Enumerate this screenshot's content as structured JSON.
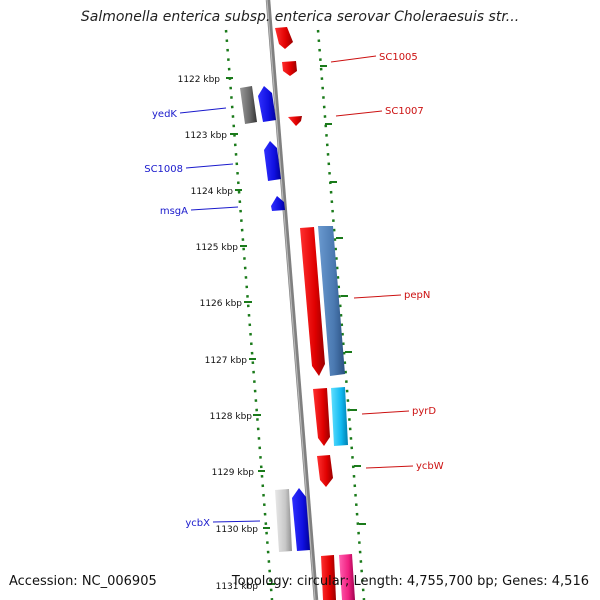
{
  "title": "Salmonella enterica subsp. enterica serovar Choleraesuis str...",
  "accession_text": "Accession: NC_006905",
  "summary_text": "Topology: circular; Length: 4,755,700 bp; Genes: 4,516",
  "ticks": [
    {
      "label": "1122 kbp"
    },
    {
      "label": "1123 kbp"
    },
    {
      "label": "1124 kbp"
    },
    {
      "label": "1125 kbp"
    },
    {
      "label": "1126 kbp"
    },
    {
      "label": "1127 kbp"
    },
    {
      "label": "1128 kbp"
    },
    {
      "label": "1129 kbp"
    },
    {
      "label": "1130 kbp"
    },
    {
      "label": "1131 kbp"
    }
  ],
  "gene_labels": {
    "left": [
      {
        "name": "yedK",
        "color": "#1a1acc"
      },
      {
        "name": "SC1008",
        "color": "#1a1acc"
      },
      {
        "name": "msgA",
        "color": "#1a1acc"
      },
      {
        "name": "ycbX",
        "color": "#1a1acc"
      }
    ],
    "right": [
      {
        "name": "SC1005",
        "color": "#cc1111"
      },
      {
        "name": "SC1007",
        "color": "#cc1111"
      },
      {
        "name": "pepN",
        "color": "#cc1111"
      },
      {
        "name": "pyrD",
        "color": "#cc1111"
      },
      {
        "name": "ycbW",
        "color": "#cc1111"
      }
    ]
  },
  "colors": {
    "forward_strand": "#e00000",
    "reverse_strand": "#1010e0",
    "backbone": "#808080",
    "tick_marks": "#1a7a1a"
  }
}
